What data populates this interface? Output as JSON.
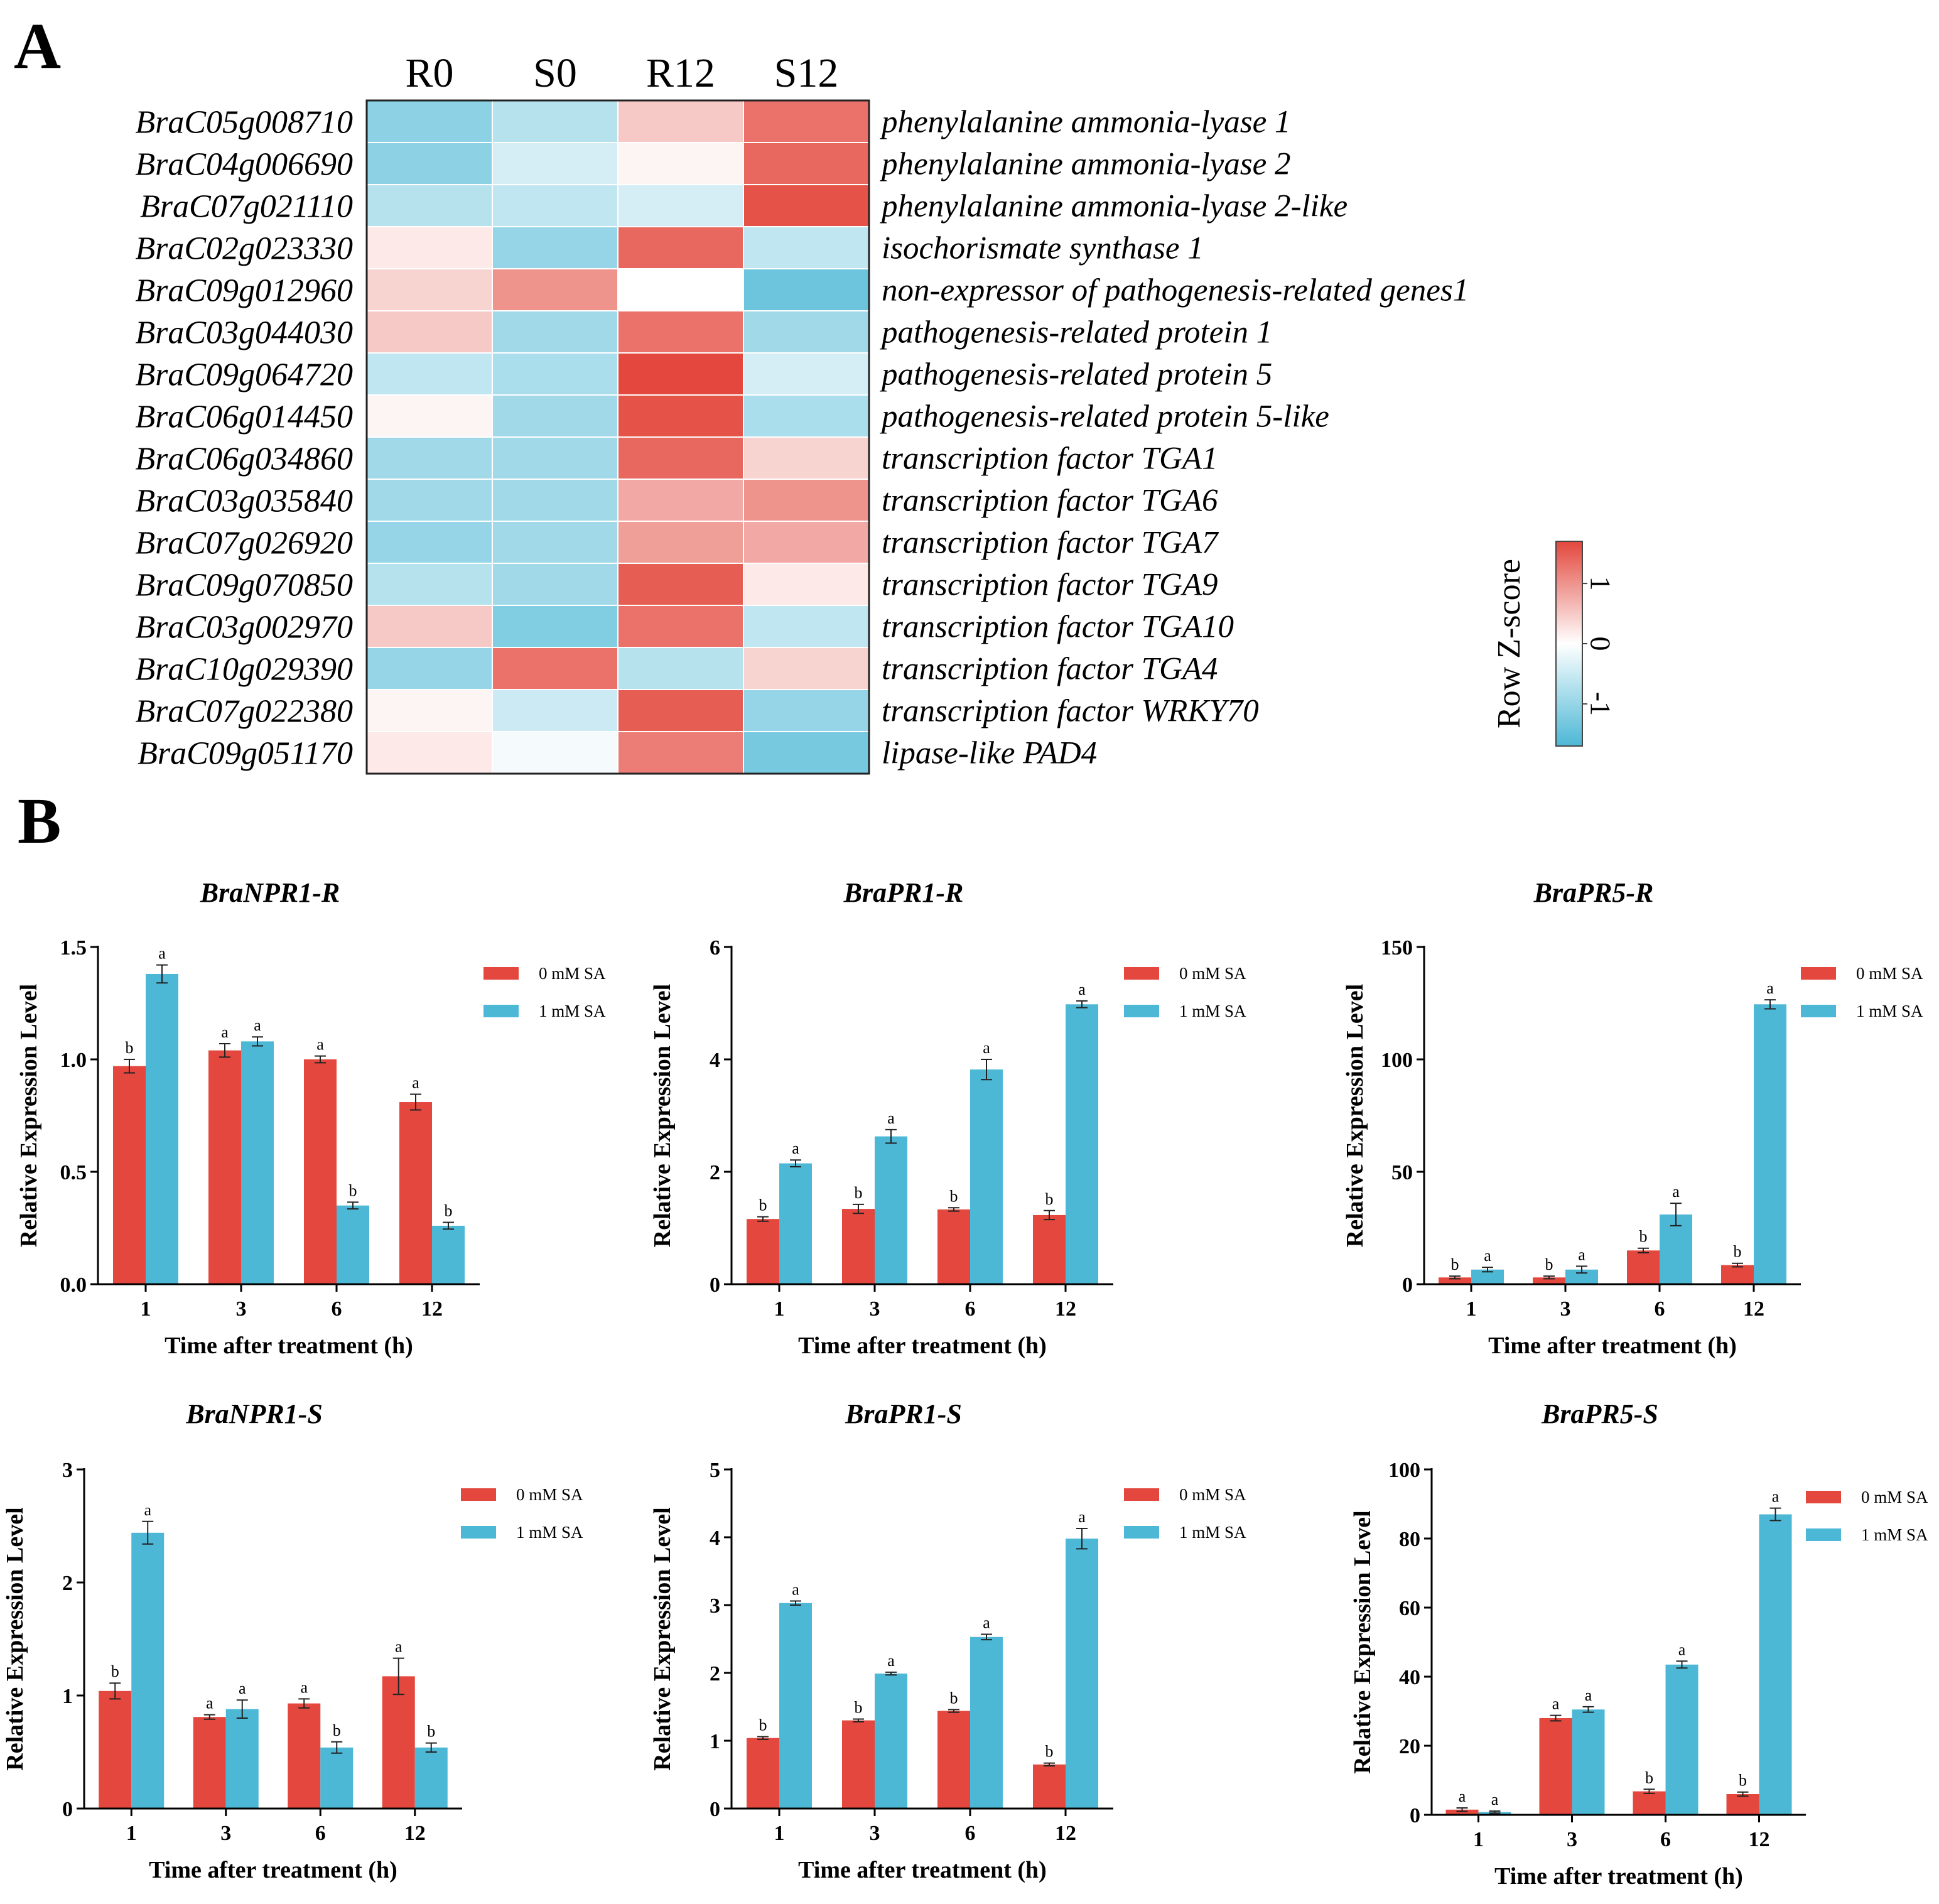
{
  "panels": {
    "a": "A",
    "b": "B"
  },
  "heatmap": {
    "columns": [
      "R0",
      "S0",
      "R12",
      "S12"
    ],
    "rows": [
      {
        "id": "BraC05g008710",
        "desc": "phenylalanine ammonia-lyase 1",
        "z": [
          -1.1,
          -0.7,
          0.5,
          1.3
        ]
      },
      {
        "id": "BraC04g006690",
        "desc": "phenylalanine ammonia-lyase 2",
        "z": [
          -1.1,
          -0.4,
          0.1,
          1.4
        ]
      },
      {
        "id": "BraC07g021110",
        "desc": "phenylalanine ammonia-lyase 2-like",
        "z": [
          -0.7,
          -0.6,
          -0.4,
          1.6
        ]
      },
      {
        "id": "BraC02g023330",
        "desc": "isochorismate synthase 1",
        "z": [
          0.2,
          -1.0,
          1.4,
          -0.6
        ]
      },
      {
        "id": "BraC09g012960",
        "desc": "non-expressor of pathogenesis-related genes1",
        "z": [
          0.4,
          1.0,
          0.0,
          -1.4
        ]
      },
      {
        "id": "BraC03g044030",
        "desc": "pathogenesis-related protein 1",
        "z": [
          0.5,
          -0.9,
          1.3,
          -0.9
        ]
      },
      {
        "id": "BraC09g064720",
        "desc": "pathogenesis-related protein 5",
        "z": [
          -0.6,
          -0.8,
          1.8,
          -0.4
        ]
      },
      {
        "id": "BraC06g014450",
        "desc": "pathogenesis-related protein 5-like",
        "z": [
          0.1,
          -0.9,
          1.6,
          -0.8
        ]
      },
      {
        "id": "BraC06g034860",
        "desc": "transcription factor TGA1",
        "z": [
          -0.9,
          -0.9,
          1.4,
          0.4
        ]
      },
      {
        "id": "BraC03g035840",
        "desc": "transcription factor TGA6",
        "z": [
          -0.9,
          -0.9,
          0.8,
          1.0
        ]
      },
      {
        "id": "BraC07g026920",
        "desc": "transcription factor TGA7",
        "z": [
          -1.0,
          -0.9,
          0.9,
          0.8
        ]
      },
      {
        "id": "BraC09g070850",
        "desc": "transcription factor TGA9",
        "z": [
          -0.7,
          -0.9,
          1.5,
          0.2
        ]
      },
      {
        "id": "BraC03g002970",
        "desc": "transcription factor TGA10",
        "z": [
          0.5,
          -1.2,
          1.3,
          -0.6
        ]
      },
      {
        "id": "BraC10g029390",
        "desc": "transcription factor TGA4",
        "z": [
          -1.0,
          1.3,
          -0.7,
          0.4
        ]
      },
      {
        "id": "BraC07g022380",
        "desc": "transcription factor WRKY70",
        "z": [
          0.1,
          -0.5,
          1.5,
          -1.0
        ]
      },
      {
        "id": "BraC09g051170",
        "desc": "lipase-like PAD4",
        "z": [
          0.2,
          -0.1,
          1.2,
          -1.3
        ]
      }
    ],
    "colorbar": {
      "title": "Row Z-score",
      "ticks": [
        "1",
        "0",
        "-1"
      ],
      "tick_values": [
        1,
        0,
        -1
      ],
      "range": [
        -1.7,
        1.7
      ]
    }
  },
  "colors": {
    "low": "#4db8d6",
    "mid": "#ffffff",
    "high": "#e3473d",
    "sa0": "#e3473d",
    "sa1": "#4cb8d6",
    "axis": "#000000"
  },
  "chart_data": [
    {
      "type": "bar",
      "title": "BraNPR1-R",
      "categories": [
        "1",
        "3",
        "6",
        "12"
      ],
      "xlabel": "Time after treatment (h)",
      "ylabel": "Relative Expression Level",
      "ylim": [
        0,
        1.5
      ],
      "yticks": [
        "0.0",
        "0.5",
        "1.0",
        "1.5"
      ],
      "ytick_values": [
        0,
        0.5,
        1.0,
        1.5
      ],
      "series": [
        {
          "name": "0 mM SA",
          "values": [
            0.97,
            1.04,
            1.0,
            0.81
          ],
          "errors": [
            0.03,
            0.03,
            0.015,
            0.035
          ],
          "labels": [
            "b",
            "a",
            "a",
            "a"
          ]
        },
        {
          "name": "1 mM SA",
          "values": [
            1.38,
            1.08,
            0.35,
            0.26
          ],
          "errors": [
            0.04,
            0.02,
            0.015,
            0.015
          ],
          "labels": [
            "a",
            "a",
            "b",
            "b"
          ]
        }
      ]
    },
    {
      "type": "bar",
      "title": "BraPR1-R",
      "categories": [
        "1",
        "3",
        "6",
        "12"
      ],
      "xlabel": "Time after treatment (h)",
      "ylabel": "Relative Expression Level",
      "ylim": [
        0,
        6
      ],
      "yticks": [
        "0",
        "2",
        "4",
        "6"
      ],
      "ytick_values": [
        0,
        2,
        4,
        6
      ],
      "series": [
        {
          "name": "0 mM SA",
          "values": [
            1.16,
            1.34,
            1.33,
            1.23
          ],
          "errors": [
            0.04,
            0.08,
            0.03,
            0.08
          ],
          "labels": [
            "b",
            "b",
            "b",
            "b"
          ]
        },
        {
          "name": "1 mM SA",
          "values": [
            2.15,
            2.63,
            3.82,
            4.98
          ],
          "errors": [
            0.06,
            0.12,
            0.18,
            0.06
          ],
          "labels": [
            "a",
            "a",
            "a",
            "a"
          ]
        }
      ]
    },
    {
      "type": "bar",
      "title": "BraPR5-R",
      "categories": [
        "1",
        "3",
        "6",
        "12"
      ],
      "xlabel": "Time after treatment (h)",
      "ylabel": "Relative Expression Level",
      "ylim": [
        0,
        150
      ],
      "yticks": [
        "0",
        "50",
        "100",
        "150"
      ],
      "ytick_values": [
        0,
        50,
        100,
        150
      ],
      "series": [
        {
          "name": "0 mM SA",
          "values": [
            3.0,
            3.0,
            15.0,
            8.5
          ],
          "errors": [
            0.6,
            0.6,
            1.0,
            0.8
          ],
          "labels": [
            "b",
            "b",
            "b",
            "b"
          ]
        },
        {
          "name": "1 mM SA",
          "values": [
            6.5,
            6.5,
            31.0,
            124.5
          ],
          "errors": [
            1.0,
            1.5,
            5.0,
            2.0
          ],
          "labels": [
            "a",
            "a",
            "a",
            "a"
          ]
        }
      ]
    },
    {
      "type": "bar",
      "title": "BraNPR1-S",
      "categories": [
        "1",
        "3",
        "6",
        "12"
      ],
      "xlabel": "Time after treatment (h)",
      "ylabel": "Relative Expression Level",
      "ylim": [
        0,
        3
      ],
      "yticks": [
        "0",
        "1",
        "2",
        "3"
      ],
      "ytick_values": [
        0,
        1,
        2,
        3
      ],
      "series": [
        {
          "name": "0 mM SA",
          "values": [
            1.04,
            0.81,
            0.93,
            1.17
          ],
          "errors": [
            0.07,
            0.02,
            0.04,
            0.16
          ],
          "labels": [
            "b",
            "a",
            "a",
            "a"
          ]
        },
        {
          "name": "1 mM SA",
          "values": [
            2.44,
            0.88,
            0.54,
            0.54
          ],
          "errors": [
            0.1,
            0.08,
            0.05,
            0.04
          ],
          "labels": [
            "a",
            "a",
            "b",
            "b"
          ]
        }
      ]
    },
    {
      "type": "bar",
      "title": "BraPR1-S",
      "categories": [
        "1",
        "3",
        "6",
        "12"
      ],
      "xlabel": "Time after treatment (h)",
      "ylabel": "Relative Expression Level",
      "ylim": [
        0,
        5
      ],
      "yticks": [
        "0",
        "1",
        "2",
        "3",
        "4",
        "5"
      ],
      "ytick_values": [
        0,
        1,
        2,
        3,
        4,
        5
      ],
      "series": [
        {
          "name": "0 mM SA",
          "values": [
            1.04,
            1.3,
            1.44,
            0.65
          ],
          "errors": [
            0.02,
            0.02,
            0.02,
            0.02
          ],
          "labels": [
            "b",
            "b",
            "b",
            "b"
          ]
        },
        {
          "name": "1 mM SA",
          "values": [
            3.03,
            1.99,
            2.53,
            3.98
          ],
          "errors": [
            0.03,
            0.02,
            0.04,
            0.15
          ],
          "labels": [
            "a",
            "a",
            "a",
            "a"
          ]
        }
      ]
    },
    {
      "type": "bar",
      "title": "BraPR5-S",
      "categories": [
        "1",
        "3",
        "6",
        "12"
      ],
      "xlabel": "Time after treatment (h)",
      "ylabel": "Relative Expression Level",
      "ylim": [
        0,
        100
      ],
      "yticks": [
        "0",
        "20",
        "40",
        "60",
        "80",
        "100"
      ],
      "ytick_values": [
        0,
        20,
        40,
        60,
        80,
        100
      ],
      "series": [
        {
          "name": "0 mM SA",
          "values": [
            1.5,
            28.0,
            6.8,
            6.0
          ],
          "errors": [
            0.5,
            0.8,
            0.6,
            0.6
          ],
          "labels": [
            "a",
            "a",
            "b",
            "b"
          ]
        },
        {
          "name": "1 mM SA",
          "values": [
            0.8,
            30.5,
            43.5,
            87.0
          ],
          "errors": [
            0.3,
            0.8,
            1.0,
            1.8
          ],
          "labels": [
            "a",
            "a",
            "a",
            "a"
          ]
        }
      ]
    }
  ]
}
